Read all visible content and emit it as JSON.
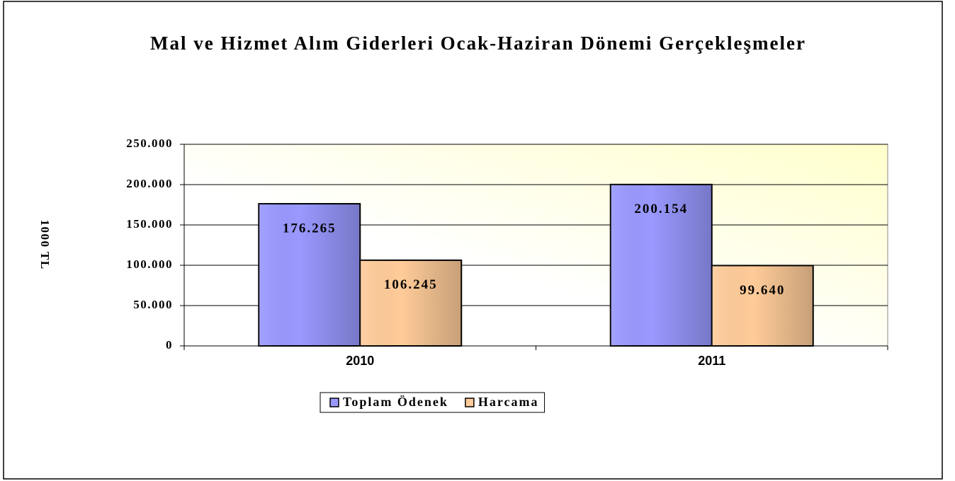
{
  "chart_data": {
    "type": "bar",
    "title": "Mal ve Hizmet Alım Giderleri Ocak-Haziran Dönemi Gerçekleşmeler",
    "y_label": "1000 TL",
    "categories": [
      "2010",
      "2011"
    ],
    "series": [
      {
        "name": "Toplam Ödenek",
        "color": "#9999ff",
        "values": [
          176265,
          200154
        ],
        "value_labels": [
          "176.265",
          "200.154"
        ]
      },
      {
        "name": "Harcama",
        "color": "#ffcc99",
        "values": [
          106245,
          99640
        ],
        "value_labels": [
          "106.245",
          "99.640"
        ]
      }
    ],
    "ylim": [
      0,
      250000
    ],
    "yticks": [
      0,
      {
        "value": 50000,
        "label": "50.000"
      },
      {
        "value": 100000,
        "label": "100.000"
      },
      {
        "value": 150000,
        "label": "150.000"
      },
      {
        "value": 200000,
        "label": "200.000"
      },
      {
        "value": 250000,
        "label": "250.000"
      }
    ],
    "grid": true,
    "legend": "bottom"
  }
}
